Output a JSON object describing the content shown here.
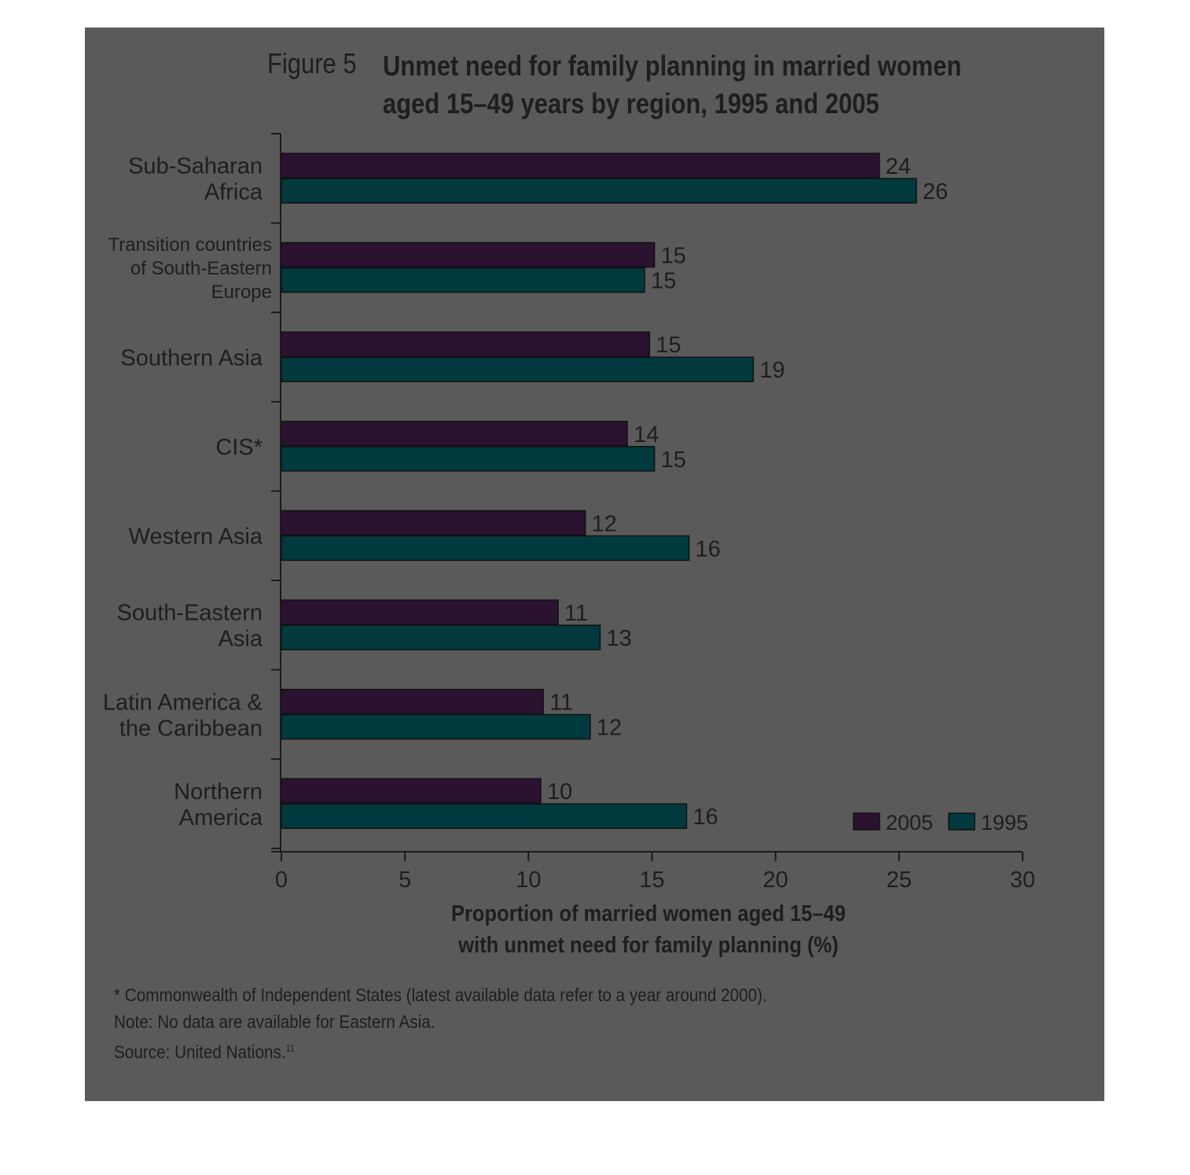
{
  "figure_label": "Figure 5",
  "title_lines": [
    "Unmet need for family planning in married women",
    "aged 15–49 years by region, 1995 and 2005"
  ],
  "xlabel_lines": [
    "Proportion of married women aged 15–49",
    "with unmet need for family planning (%)"
  ],
  "notes": {
    "line1": "* Commonwealth of Independent States (latest available data refer to a year around 2000).",
    "line2": "Note: No data are available for Eastern Asia.",
    "line3": "Source: United Nations.",
    "line3_ref": "11"
  },
  "colors": {
    "series_2005": "#2b1230",
    "series_1995": "#003a3e",
    "panel": "#5a5a5a",
    "text": "#1e1e1e"
  },
  "chart_data": {
    "type": "bar",
    "orientation": "horizontal",
    "title": "Unmet need for family planning in married women aged 15–49 years by region, 1995 and 2005",
    "xlabel": "Proportion of married women aged 15–49 with unmet need for family planning (%)",
    "xlim": [
      0,
      30
    ],
    "xticks": [
      0,
      5,
      10,
      15,
      20,
      25,
      30
    ],
    "grid": false,
    "legend_position": "bottom-right",
    "categories": [
      {
        "label_lines": [
          "Sub-Saharan",
          "Africa"
        ]
      },
      {
        "label_lines": [
          "Transition countries",
          "of South-Eastern",
          "Europe"
        ]
      },
      {
        "label_lines": [
          "Southern Asia"
        ]
      },
      {
        "label_lines": [
          "CIS*"
        ]
      },
      {
        "label_lines": [
          "Western Asia"
        ]
      },
      {
        "label_lines": [
          "South-Eastern",
          "Asia"
        ]
      },
      {
        "label_lines": [
          "Latin America &",
          "the Caribbean"
        ]
      },
      {
        "label_lines": [
          "Northern",
          "America"
        ]
      }
    ],
    "series": [
      {
        "name": "2005",
        "values": [
          24.2,
          15.1,
          14.9,
          14.0,
          12.3,
          11.2,
          10.6,
          10.5
        ],
        "labels": [
          "24",
          "15",
          "15",
          "14",
          "12",
          "11",
          "11",
          "10"
        ]
      },
      {
        "name": "1995",
        "values": [
          25.7,
          14.7,
          19.1,
          15.1,
          16.5,
          12.9,
          12.5,
          16.4
        ],
        "labels": [
          "26",
          "15",
          "19",
          "15",
          "16",
          "13",
          "12",
          "16"
        ]
      }
    ]
  }
}
